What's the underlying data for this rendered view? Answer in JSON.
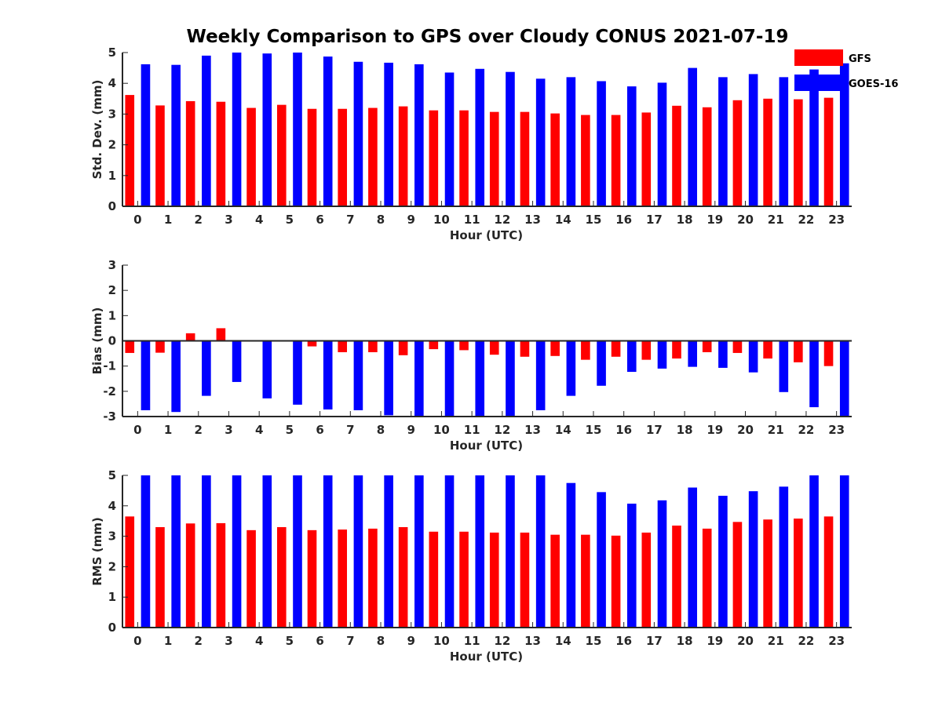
{
  "chart_data": {
    "title": "Weekly Comparison to GPS over Cloudy CONUS 2021-07-19",
    "type": "bar",
    "categories": [
      "0",
      "1",
      "2",
      "3",
      "4",
      "5",
      "6",
      "7",
      "8",
      "9",
      "10",
      "11",
      "12",
      "13",
      "14",
      "15",
      "16",
      "17",
      "18",
      "19",
      "20",
      "21",
      "22",
      "23"
    ],
    "legend": {
      "placement": "top-right",
      "entries": [
        {
          "name": "GFS",
          "color": "#ff0000"
        },
        {
          "name": "GOES-16",
          "color": "#0000ff"
        }
      ]
    },
    "panels": [
      {
        "id": "std-dev",
        "xlabel": "Hour (UTC)",
        "ylabel": "Std. Dev. (mm)",
        "ylim": [
          0,
          5
        ],
        "yticks": [
          "0",
          "1",
          "2",
          "3",
          "4",
          "5"
        ],
        "series": [
          {
            "name": "GFS",
            "color": "#ff0000",
            "values": [
              3.62,
              3.28,
              3.42,
              3.4,
              3.2,
              3.3,
              3.17,
              3.17,
              3.2,
              3.25,
              3.12,
              3.12,
              3.07,
              3.07,
              3.02,
              2.97,
              2.97,
              3.05,
              3.27,
              3.22,
              3.45,
              3.5,
              3.48,
              3.53
            ]
          },
          {
            "name": "GOES-16",
            "color": "#0000ff",
            "values": [
              4.62,
              4.6,
              4.9,
              5.0,
              4.97,
              5.0,
              4.87,
              4.7,
              4.67,
              4.62,
              4.35,
              4.47,
              4.37,
              4.15,
              4.2,
              4.07,
              3.9,
              4.02,
              4.5,
              4.2,
              4.3,
              4.2,
              4.45,
              4.65
            ]
          }
        ]
      },
      {
        "id": "bias",
        "xlabel": "Hour (UTC)",
        "ylabel": "Bias (mm)",
        "ylim": [
          -3,
          3
        ],
        "yticks": [
          "-3",
          "-2",
          "-1",
          "0",
          "1",
          "2",
          "3"
        ],
        "series": [
          {
            "name": "GFS",
            "color": "#ff0000",
            "values": [
              -0.48,
              -0.47,
              0.3,
              0.5,
              0.0,
              0.0,
              -0.22,
              -0.45,
              -0.45,
              -0.57,
              -0.33,
              -0.37,
              -0.55,
              -0.63,
              -0.6,
              -0.75,
              -0.63,
              -0.75,
              -0.7,
              -0.45,
              -0.48,
              -0.7,
              -0.85,
              -1.0
            ]
          },
          {
            "name": "GOES-16",
            "color": "#0000ff",
            "values": [
              -2.75,
              -2.82,
              -2.18,
              -1.63,
              -2.28,
              -2.53,
              -2.72,
              -2.75,
              -2.95,
              -3.0,
              -3.0,
              -3.0,
              -3.0,
              -2.75,
              -2.18,
              -1.78,
              -1.23,
              -1.1,
              -1.03,
              -1.07,
              -1.25,
              -2.03,
              -2.63,
              -3.0
            ]
          }
        ]
      },
      {
        "id": "rms",
        "xlabel": "Hour (UTC)",
        "ylabel": "RMS (mm)",
        "ylim": [
          0,
          5
        ],
        "yticks": [
          "0",
          "1",
          "2",
          "3",
          "4",
          "5"
        ],
        "series": [
          {
            "name": "GFS",
            "color": "#ff0000",
            "values": [
              3.65,
              3.3,
              3.42,
              3.43,
              3.2,
              3.3,
              3.2,
              3.22,
              3.25,
              3.3,
              3.15,
              3.15,
              3.12,
              3.12,
              3.05,
              3.05,
              3.02,
              3.12,
              3.35,
              3.25,
              3.47,
              3.55,
              3.58,
              3.65
            ]
          },
          {
            "name": "GOES-16",
            "color": "#0000ff",
            "values": [
              5.0,
              5.0,
              5.0,
              5.0,
              5.0,
              5.0,
              5.0,
              5.0,
              5.0,
              5.0,
              5.0,
              5.0,
              5.0,
              5.0,
              4.75,
              4.45,
              4.07,
              4.18,
              4.6,
              4.33,
              4.48,
              4.63,
              5.0,
              5.0
            ]
          }
        ]
      }
    ]
  }
}
